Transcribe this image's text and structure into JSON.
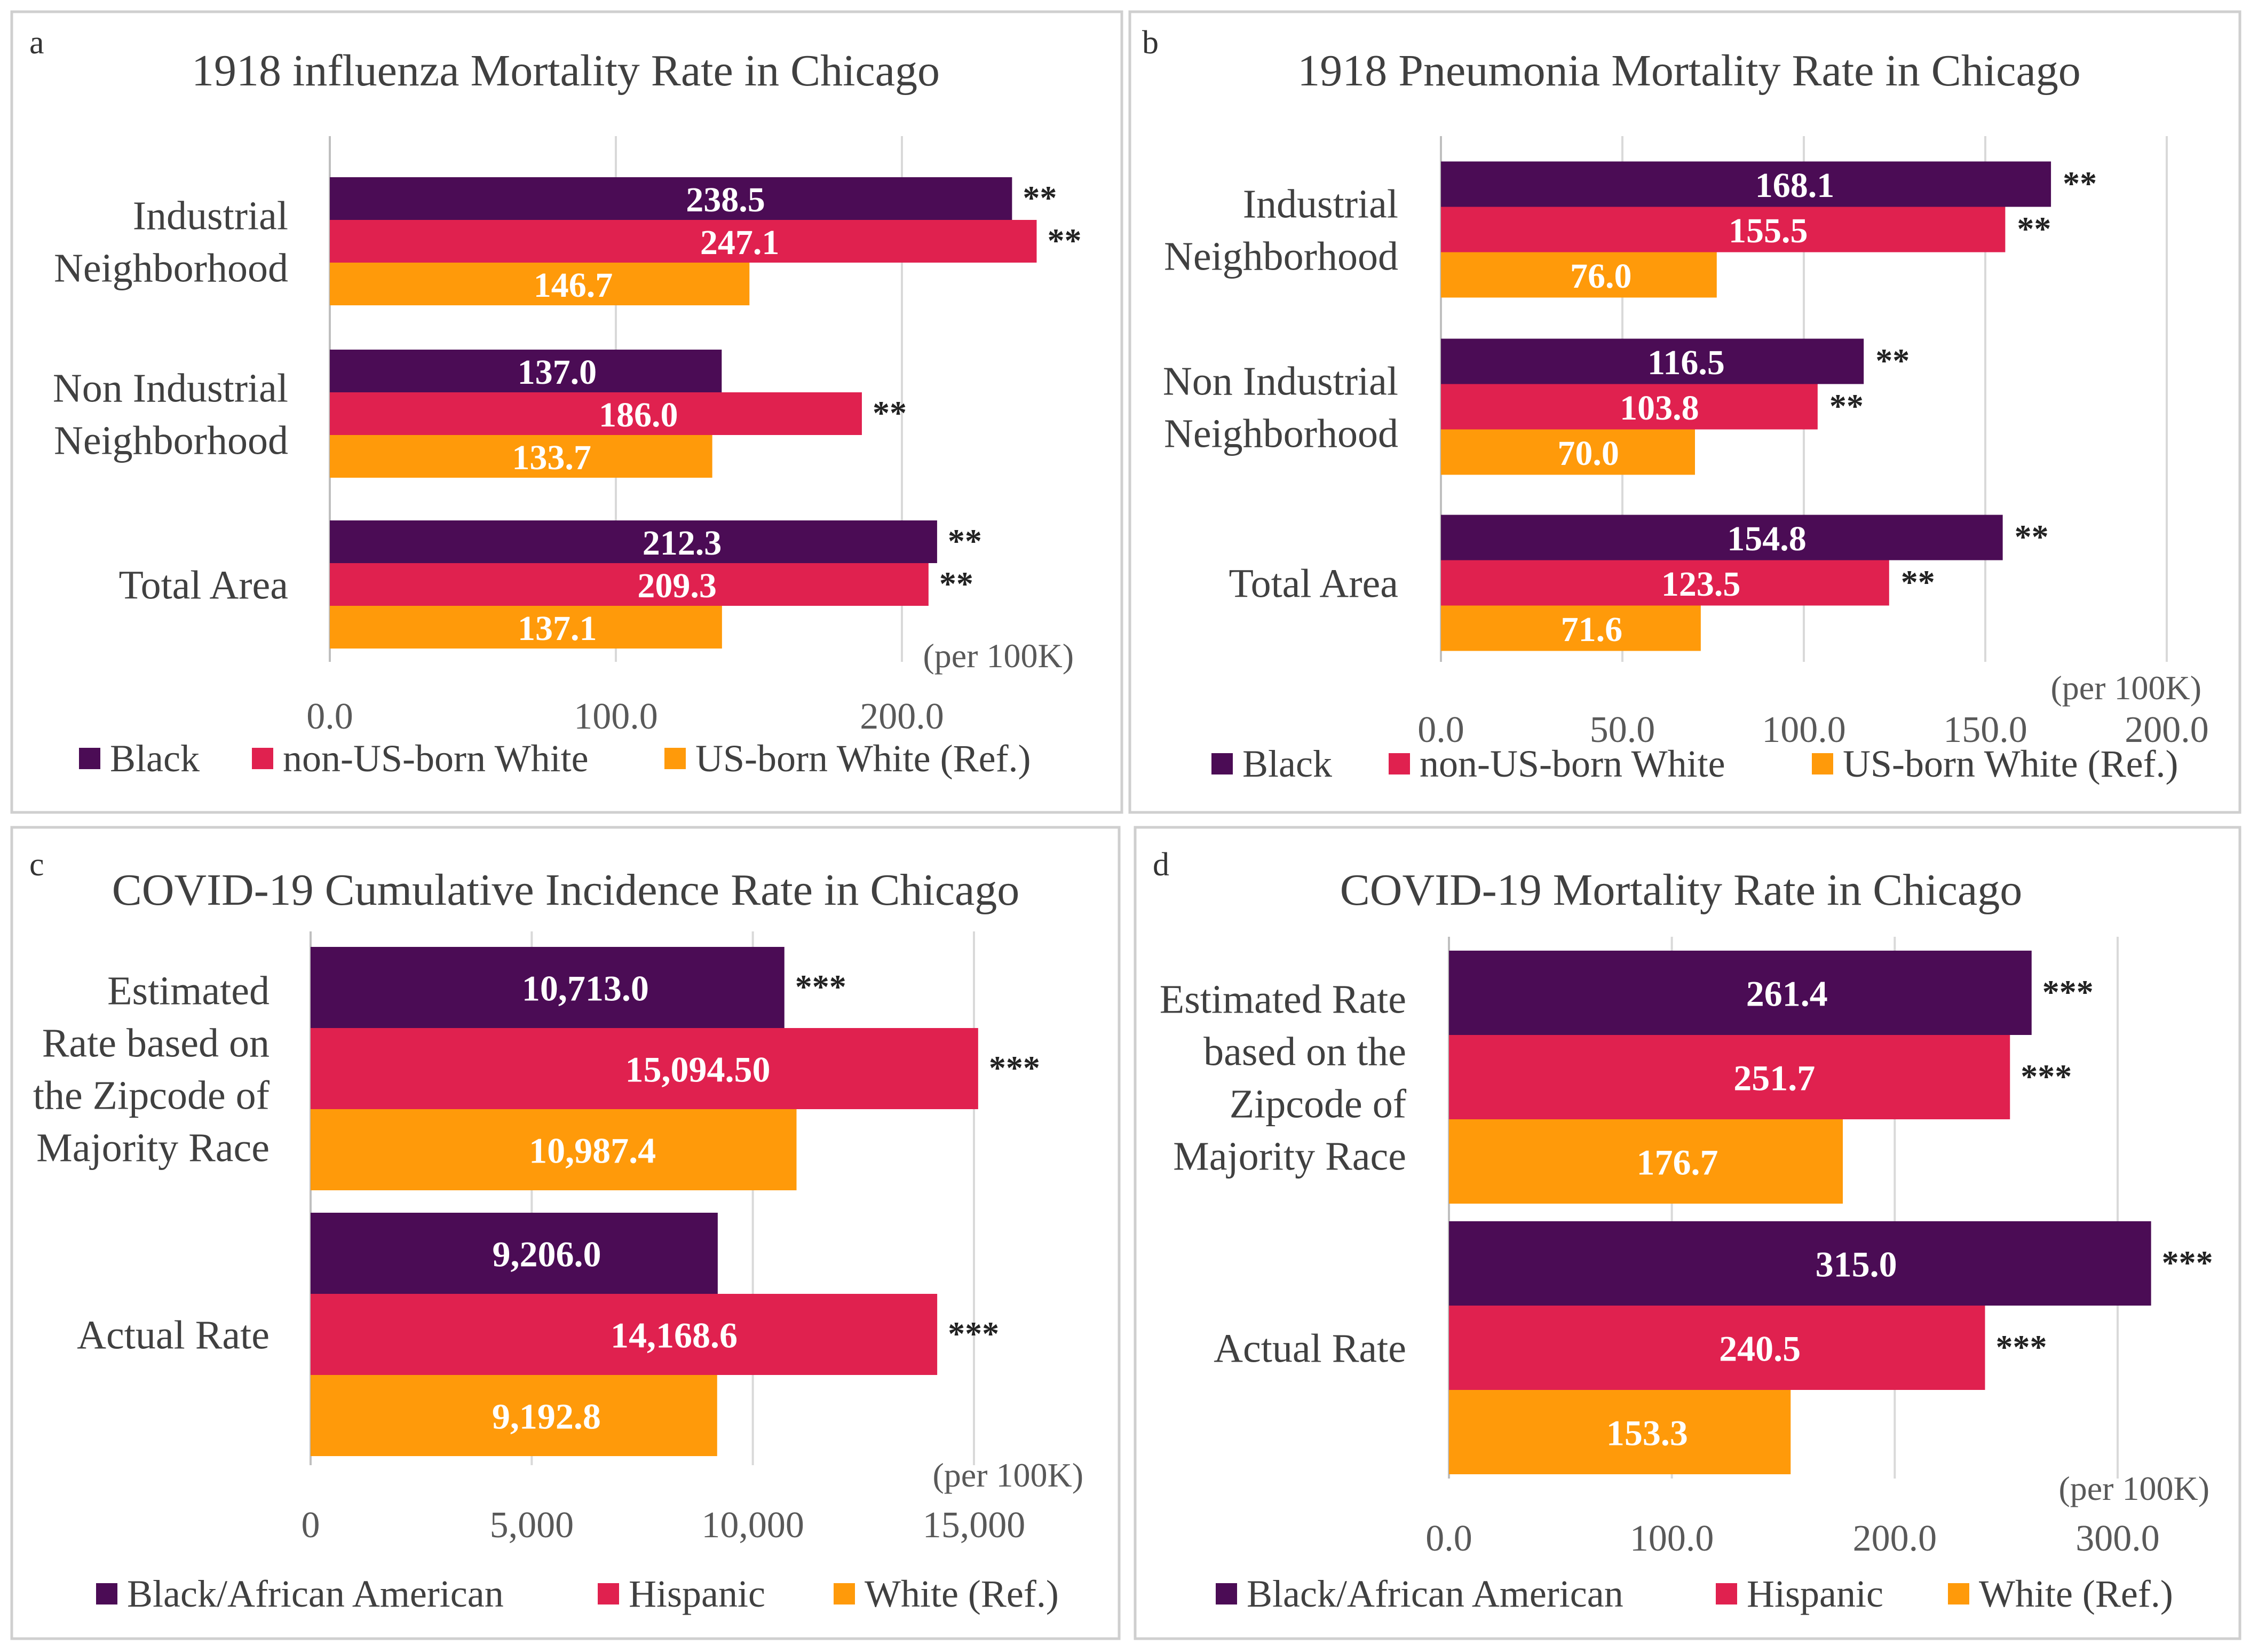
{
  "chart_data": [
    {
      "panel_letter": "a",
      "type": "bar",
      "orientation": "horizontal",
      "title": "1918 influenza  Mortality Rate in Chicago",
      "categories": [
        [
          "Industrial",
          "Neighborhood"
        ],
        [
          "Non Industrial",
          "Neighborhood"
        ],
        [
          "Total Area"
        ]
      ],
      "series": [
        {
          "name": "Black",
          "color": "#4b0c55",
          "values": [
            238.5,
            137.0,
            212.3
          ],
          "labels": [
            "238.5",
            "137.0",
            "212.3"
          ],
          "significance": [
            "**",
            "",
            "**"
          ]
        },
        {
          "name": "non-US-born White",
          "color": "#e0214f",
          "values": [
            247.1,
            186.0,
            209.3
          ],
          "labels": [
            "247.1",
            "186.0",
            "209.3"
          ],
          "significance": [
            "**",
            "**",
            "**"
          ]
        },
        {
          "name": "US-born White (Ref.)",
          "color": "#ff9a0a",
          "values": [
            146.7,
            133.7,
            137.1
          ],
          "labels": [
            "146.7",
            "133.7",
            "137.1"
          ],
          "significance": [
            "",
            "",
            ""
          ]
        }
      ],
      "xlim": [
        0,
        250
      ],
      "ticks": [
        0,
        100,
        200
      ],
      "tick_labels": [
        "0.0",
        "100.0",
        "200.0"
      ],
      "unit_note": "(per 100K)",
      "legend_position": "bottom"
    },
    {
      "panel_letter": "b",
      "type": "bar",
      "orientation": "horizontal",
      "title": "1918 Pneumonia Mortality Rate in Chicago",
      "categories": [
        [
          "Industrial",
          "Neighborhood"
        ],
        [
          "Non Industrial",
          "Neighborhood"
        ],
        [
          "Total Area"
        ]
      ],
      "series": [
        {
          "name": "Black",
          "color": "#4b0c55",
          "values": [
            168.1,
            116.5,
            154.8
          ],
          "labels": [
            "168.1",
            "116.5",
            "154.8"
          ],
          "significance": [
            "**",
            "**",
            "**"
          ]
        },
        {
          "name": "non-US-born White",
          "color": "#e0214f",
          "values": [
            155.5,
            103.8,
            123.5
          ],
          "labels": [
            "155.5",
            "103.8",
            "123.5"
          ],
          "significance": [
            "**",
            "**",
            "**"
          ]
        },
        {
          "name": "US-born White (Ref.)",
          "color": "#ff9a0a",
          "values": [
            76.0,
            70.0,
            71.6
          ],
          "labels": [
            "76.0",
            "70.0",
            "71.6"
          ],
          "significance": [
            "",
            "",
            ""
          ]
        }
      ],
      "xlim": [
        0,
        200
      ],
      "ticks": [
        0,
        50,
        100,
        150,
        200
      ],
      "tick_labels": [
        "0.0",
        "50.0",
        "100.0",
        "150.0",
        "200.0"
      ],
      "unit_note": "(per 100K)",
      "legend_position": "bottom"
    },
    {
      "panel_letter": "c",
      "type": "bar",
      "orientation": "horizontal",
      "title": "COVID-19  Cumulative  Incidence  Rate in Chicago",
      "categories": [
        [
          "Estimated",
          "Rate based on",
          "the Zipcode of",
          "Majority Race"
        ],
        [
          "Actual Rate"
        ]
      ],
      "series": [
        {
          "name": "Black/African American",
          "color": "#4b0c55",
          "values": [
            10713.0,
            9206.0
          ],
          "labels": [
            "10,713.0",
            "9,206.0"
          ],
          "significance": [
            "***",
            ""
          ]
        },
        {
          "name": "Hispanic",
          "color": "#e0214f",
          "values": [
            15094.5,
            14168.6
          ],
          "labels": [
            "15,094.50",
            "14,168.6"
          ],
          "significance": [
            "***",
            "***"
          ]
        },
        {
          "name": "White (Ref.)",
          "color": "#ff9a0a",
          "values": [
            10987.4,
            9192.8
          ],
          "labels": [
            "10,987.4",
            "9,192.8"
          ],
          "significance": [
            "",
            ""
          ]
        }
      ],
      "xlim": [
        0,
        15000
      ],
      "ticks": [
        0,
        5000,
        10000,
        15000
      ],
      "tick_labels": [
        "0",
        "5,000",
        "10,000",
        "15,000"
      ],
      "unit_note": "(per 100K)",
      "legend_position": "bottom"
    },
    {
      "panel_letter": "d",
      "type": "bar",
      "orientation": "horizontal",
      "title": "COVID-19 Mortality Rate in Chicago",
      "categories": [
        [
          "Estimated Rate",
          "based on the",
          "Zipcode of",
          "Majority Race"
        ],
        [
          "Actual Rate"
        ]
      ],
      "series": [
        {
          "name": "Black/African American",
          "color": "#4b0c55",
          "values": [
            261.4,
            315.0
          ],
          "labels": [
            "261.4",
            "315.0"
          ],
          "significance": [
            "***",
            "***"
          ]
        },
        {
          "name": "Hispanic",
          "color": "#e0214f",
          "values": [
            251.7,
            240.5
          ],
          "labels": [
            "251.7",
            "240.5"
          ],
          "significance": [
            "***",
            "***"
          ]
        },
        {
          "name": "White (Ref.)",
          "color": "#ff9a0a",
          "values": [
            176.7,
            153.3
          ],
          "labels": [
            "176.7",
            "153.3"
          ],
          "significance": [
            "",
            ""
          ]
        }
      ],
      "xlim": [
        0,
        300
      ],
      "ticks": [
        0,
        100,
        200,
        300
      ],
      "tick_labels": [
        "0.0",
        "100.0",
        "200.0",
        "300.0"
      ],
      "unit_note": "(per 100K)",
      "legend_position": "bottom"
    }
  ]
}
